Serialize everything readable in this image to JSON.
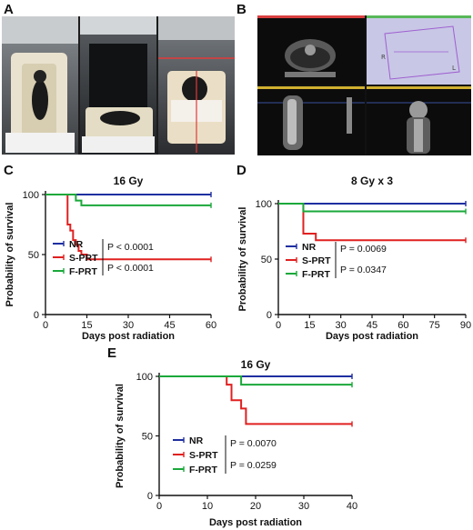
{
  "panel_letters": [
    "A",
    "B",
    "C",
    "D",
    "E"
  ],
  "colors": {
    "NR": "#1f2fa0",
    "S-PRT": "#e02020",
    "F-PRT": "#1aa83a",
    "axis": "#111111"
  },
  "photos": {
    "A": {
      "description_icon": "mouse-on-irradiation-bed-photos"
    },
    "B": {
      "description_icon": "ct-scan-viewer-screenshots"
    }
  },
  "chart_data": [
    {
      "id": "C",
      "type": "line",
      "step": true,
      "title": "16 Gy",
      "xlabel": "Days post radiation",
      "ylabel": "Probability of survival",
      "xlim": [
        0,
        60
      ],
      "ylim": [
        0,
        100
      ],
      "xticks": [
        0,
        15,
        30,
        45,
        60
      ],
      "yticks": [
        0,
        50,
        100
      ],
      "series": [
        {
          "name": "NR",
          "color": "#1f2fa0",
          "x": [
            0,
            60
          ],
          "y": [
            100,
            100
          ]
        },
        {
          "name": "S-PRT",
          "color": "#e02020",
          "x": [
            0,
            8,
            9,
            10,
            11,
            12,
            13,
            15,
            60
          ],
          "y": [
            100,
            75,
            70,
            62,
            58,
            53,
            50,
            46,
            46
          ]
        },
        {
          "name": "F-PRT",
          "color": "#1aa83a",
          "x": [
            0,
            11,
            13,
            60
          ],
          "y": [
            100,
            95,
            91,
            91
          ]
        }
      ],
      "legend": [
        "NR",
        "S-PRT",
        "F-PRT"
      ],
      "stats": [
        "P < 0.0001",
        "P < 0.0001"
      ]
    },
    {
      "id": "D",
      "type": "line",
      "step": true,
      "title": "8 Gy x 3",
      "xlabel": "Days post radiation",
      "ylabel": "Probability of survival",
      "xlim": [
        0,
        90
      ],
      "ylim": [
        0,
        100
      ],
      "xticks": [
        0,
        15,
        30,
        45,
        60,
        75,
        90
      ],
      "yticks": [
        0,
        50,
        100
      ],
      "series": [
        {
          "name": "NR",
          "color": "#1f2fa0",
          "x": [
            0,
            90
          ],
          "y": [
            100,
            100
          ]
        },
        {
          "name": "S-PRT",
          "color": "#e02020",
          "x": [
            0,
            12,
            18,
            90
          ],
          "y": [
            100,
            73,
            67,
            67
          ]
        },
        {
          "name": "F-PRT",
          "color": "#1aa83a",
          "x": [
            0,
            12,
            90
          ],
          "y": [
            100,
            93,
            93
          ]
        }
      ],
      "legend": [
        "NR",
        "S-PRT",
        "F-PRT"
      ],
      "stats": [
        "P = 0.0069",
        "P = 0.0347"
      ]
    },
    {
      "id": "E",
      "type": "line",
      "step": true,
      "title": "16 Gy",
      "xlabel": "Days post radiation",
      "ylabel": "Probability of survival",
      "xlim": [
        0,
        40
      ],
      "ylim": [
        0,
        100
      ],
      "xticks": [
        0,
        10,
        20,
        30,
        40
      ],
      "yticks": [
        0,
        50,
        100
      ],
      "series": [
        {
          "name": "NR",
          "color": "#1f2fa0",
          "x": [
            0,
            40
          ],
          "y": [
            100,
            100
          ]
        },
        {
          "name": "S-PRT",
          "color": "#e02020",
          "x": [
            0,
            14,
            15,
            17,
            18,
            40
          ],
          "y": [
            100,
            93,
            80,
            73,
            60,
            60
          ]
        },
        {
          "name": "F-PRT",
          "color": "#1aa83a",
          "x": [
            0,
            17,
            18,
            40
          ],
          "y": [
            100,
            93,
            93,
            93
          ]
        }
      ],
      "legend": [
        "NR",
        "S-PRT",
        "F-PRT"
      ],
      "stats": [
        "P = 0.0070",
        "P = 0.0259"
      ]
    }
  ]
}
